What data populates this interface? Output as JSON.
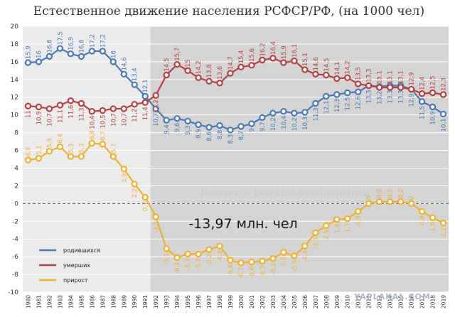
{
  "chart_data": {
    "type": "line",
    "title": "Естественное движение населения РСФСР/РФ, (на 1000 чел)",
    "x": [
      "1980",
      "1981",
      "1982",
      "1983",
      "1984",
      "1985",
      "1986",
      "1987",
      "1988",
      "1989",
      "1990",
      "1991",
      "1992",
      "1993",
      "1994",
      "1995",
      "1996",
      "1997",
      "1998",
      "1999",
      "2000",
      "2001",
      "2002",
      "2003",
      "2004",
      "2005",
      "2006",
      "2007",
      "2008",
      "2009",
      "2010",
      "2011",
      "2012",
      "2013",
      "2014",
      "2015",
      "2016",
      "2017",
      "2018",
      "2019"
    ],
    "ylim": [
      -10,
      20
    ],
    "yticks": [
      "-10",
      "-8",
      "-6",
      "-4",
      "-2",
      "0",
      "2",
      "4",
      "6",
      "8",
      "10",
      "12",
      "14",
      "16",
      "18",
      "20"
    ],
    "grid": true,
    "legend_position": "bottom-left",
    "colors": {
      "shade": "#d4d4d4",
      "plot_bg": "#ebebeb",
      "births": "#4a7ab8",
      "deaths": "#b84040",
      "growth": "#f0b030"
    },
    "series": [
      {
        "name": "родившихся",
        "values": [
          15.9,
          16.0,
          16.6,
          17.5,
          16.9,
          16.6,
          17.2,
          17.2,
          16.0,
          14.6,
          13.4,
          12.1,
          10.7,
          9.4,
          9.6,
          9.3,
          8.9,
          8.6,
          8.8,
          8.3,
          8.7,
          9.0,
          9.7,
          10.2,
          10.4,
          10.2,
          10.3,
          11.3,
          12.1,
          12.3,
          12.5,
          12.6,
          13.3,
          13.2,
          13.3,
          13.3,
          12.9,
          11.5,
          10.9,
          10.1
        ],
        "labels": [
          "15,9",
          "16",
          "16,6",
          "17,5",
          "16,9",
          "16,6",
          "17,2",
          "17,2",
          "16",
          "14,6",
          "13,4",
          "12,1",
          "10,7",
          "9,4",
          "9,6",
          "9,3",
          "8,9",
          "8,6",
          "8,8",
          "8,3",
          "8,7",
          "9",
          "9,7",
          "10,2",
          "10,4",
          "10,2",
          "10,3",
          "11,3",
          "12,1",
          "12,3",
          "12,5",
          "12,6",
          "13,3",
          "13,2",
          "13,3",
          "13,3",
          "12,9",
          "11,5",
          "10,9",
          "10,1"
        ]
      },
      {
        "name": "умерших",
        "values": [
          11.0,
          10.9,
          10.7,
          11.1,
          11.6,
          11.3,
          10.4,
          10.5,
          10.7,
          10.7,
          11.2,
          11.4,
          12.2,
          14.5,
          15.7,
          15.0,
          14.2,
          13.8,
          13.6,
          14.7,
          15.4,
          15.6,
          16.2,
          16.4,
          15.9,
          16.1,
          15.1,
          14.6,
          14.5,
          14.1,
          14.2,
          13.5,
          13.3,
          13.1,
          13.1,
          13.1,
          12.9,
          12.4,
          12.5,
          12.3
        ],
        "labels": [
          "11",
          "10,9",
          "10,7",
          "11,1",
          "11,6",
          "11,3",
          "10,4",
          "10,5",
          "10,7",
          "10,7",
          "11,2",
          "11,4",
          "12,2",
          "14,5",
          "15,7",
          "15",
          "14,2",
          "13,8",
          "13,6",
          "14,7",
          "15,4",
          "15,6",
          "16,2",
          "16,4",
          "15,9",
          "16,1",
          "15,1",
          "14,6",
          "14,5",
          "14,1",
          "14,2",
          "13,5",
          "13,3",
          "13,1",
          "13,1",
          "13,1",
          "12,9",
          "12,4",
          "12,5",
          "12,3"
        ]
      },
      {
        "name": "прирост",
        "values": [
          4.9,
          5.1,
          5.9,
          6.4,
          5.3,
          5.3,
          6.8,
          6.7,
          5.3,
          3.9,
          2.2,
          0.7,
          -1.5,
          -5.1,
          -6.1,
          -5.7,
          -5.7,
          -5.2,
          -4.8,
          -6.4,
          -6.7,
          -6.6,
          -6.5,
          -6.2,
          -5.5,
          -5.9,
          -4.8,
          -3.3,
          -2.5,
          -1.8,
          -1.7,
          -0.9,
          0.0,
          0.2,
          0.2,
          0.2,
          0.0,
          -0.9,
          -1.6,
          -2.2
        ],
        "labels": [
          "4,9",
          "5,1",
          "5,9",
          "6,4",
          "5,3",
          "5,3",
          "6,8",
          "6,7",
          "5,3",
          "3,9",
          "2,2",
          "0,7",
          "-1,5",
          "-5,1",
          "-6,1",
          "-5,7",
          "-5,7",
          "-5,2",
          "-4,8",
          "-6,4",
          "-6,7",
          "-6,6",
          "-6,5",
          "-6,2",
          "-5,5",
          "-5,9",
          "-4,8",
          "-3,3",
          "-2,5",
          "-1,8",
          "-1,7",
          "-0,9",
          "0",
          "0,2",
          "0,2",
          "0,2",
          "0",
          "-0,9",
          "-1,6",
          "-2,2"
        ]
      }
    ],
    "shaded_from_year": "1992",
    "watermark": "Росстат © burckina-new.livejournal.com",
    "annotation": "-13,97 млн. чел",
    "brand": "YAPLAKAL.COM"
  }
}
